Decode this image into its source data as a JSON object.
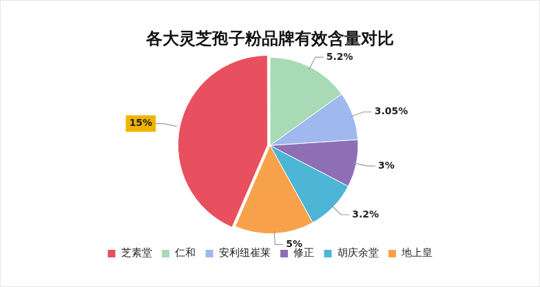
{
  "chart_data": {
    "type": "pie",
    "title": "各大灵芝孢子粉品牌有效含量对比",
    "categories": [
      "芝素堂",
      "仁和",
      "安利纽崔莱",
      "修正",
      "胡庆余堂",
      "地上皇"
    ],
    "values": [
      15,
      5.2,
      3.05,
      3,
      3.2,
      5
    ],
    "value_labels": [
      "15%",
      "5.2%",
      "3.05%",
      "3%",
      "3.2%",
      "5%"
    ],
    "colors": [
      "#e8505f",
      "#a8dab5",
      "#9fb8ee",
      "#8e6fb5",
      "#4db5d6",
      "#f7a24b"
    ],
    "data_labels": true,
    "legend": "bottom"
  }
}
